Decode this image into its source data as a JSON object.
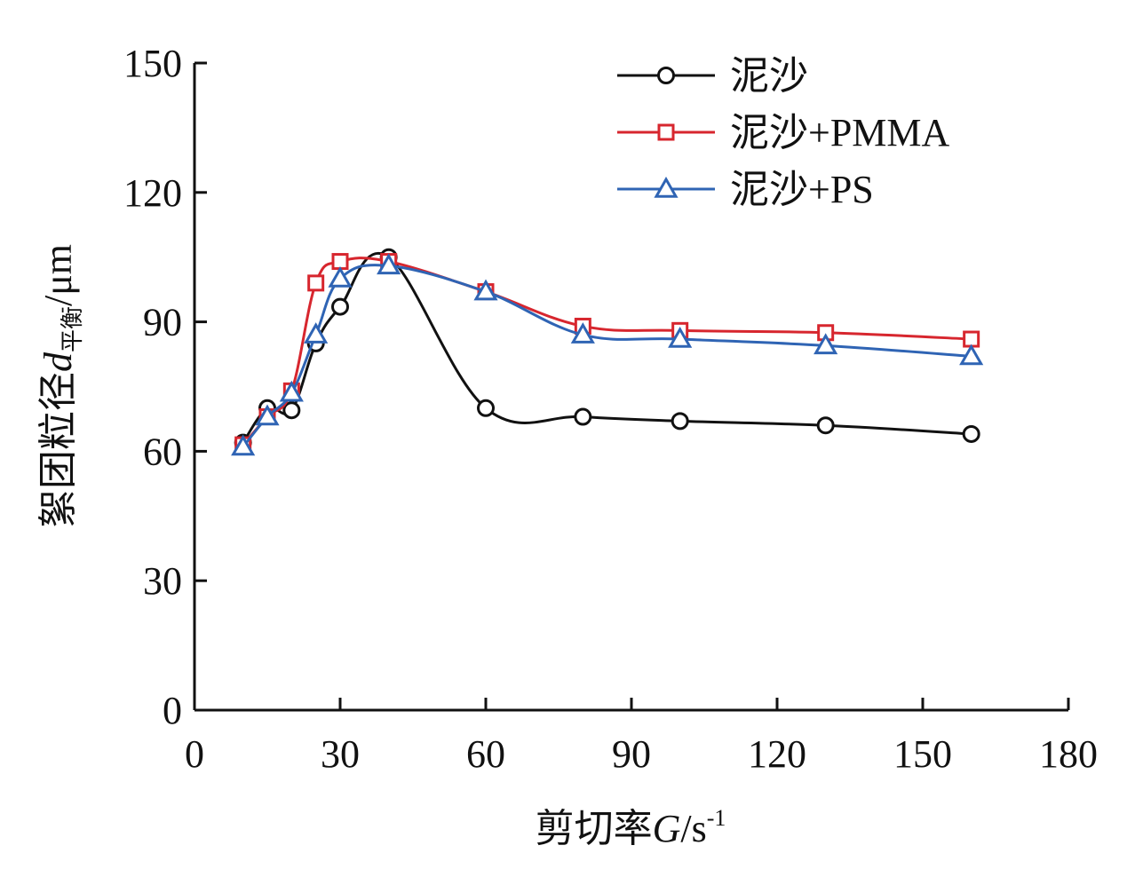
{
  "chart_data": {
    "type": "line",
    "xlabel": {
      "prefix": "剪切率",
      "var": "G",
      "unit": "/s",
      "sup": "-1"
    },
    "ylabel": {
      "prefix": "絮团粒径",
      "var": "d",
      "sub": "平衡",
      "unit": "/μm"
    },
    "xlim": [
      0,
      180
    ],
    "ylim": [
      0,
      150
    ],
    "xticks": [
      "0",
      "30",
      "60",
      "90",
      "120",
      "150",
      "180"
    ],
    "yticks": [
      "0",
      "30",
      "60",
      "90",
      "120",
      "150"
    ],
    "grid": false,
    "legend_position": "top-right",
    "series": [
      {
        "name": "泥沙",
        "color": "#111111",
        "marker": "circle",
        "x": [
          10,
          15,
          20,
          25,
          30,
          40,
          60,
          80,
          100,
          130,
          160
        ],
        "y": [
          62,
          70,
          69.5,
          85,
          93.5,
          105,
          70,
          68,
          67,
          66,
          64
        ]
      },
      {
        "name": "泥沙+PMMA",
        "color": "#d7262e",
        "marker": "square",
        "x": [
          10,
          15,
          20,
          25,
          30,
          40,
          60,
          80,
          100,
          130,
          160
        ],
        "y": [
          61.5,
          68,
          74,
          99,
          104,
          104,
          97,
          89,
          88,
          87.5,
          86
        ]
      },
      {
        "name": "泥沙+PS",
        "color": "#2f64b4",
        "marker": "triangle",
        "x": [
          10,
          15,
          20,
          25,
          30,
          40,
          60,
          80,
          100,
          130,
          160
        ],
        "y": [
          61,
          68,
          73.5,
          87,
          100,
          103,
          97,
          87,
          86,
          84.5,
          82
        ]
      }
    ]
  }
}
